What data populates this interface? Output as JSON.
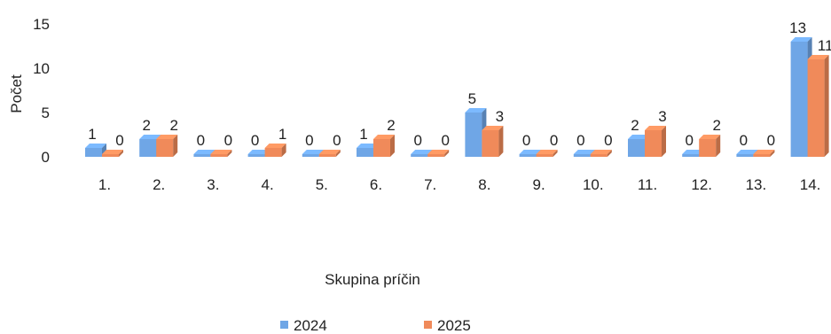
{
  "chart_data": {
    "type": "bar",
    "style": "3d-clustered-column",
    "title": "",
    "xlabel": "Skupina príčin",
    "ylabel": "Počet",
    "ylim": [
      0,
      15
    ],
    "yticks": [
      0,
      5,
      10,
      15
    ],
    "grid": false,
    "legend": "bottom",
    "categories": [
      "1.",
      "2.",
      "3.",
      "4.",
      "5.",
      "6.",
      "7.",
      "8.",
      "9.",
      "10.",
      "11.",
      "12.",
      "13.",
      "14."
    ],
    "series": [
      {
        "name": "2024",
        "color": "#6fa6e6",
        "values": [
          1,
          2,
          0,
          0,
          0,
          1,
          0,
          5,
          0,
          0,
          2,
          0,
          0,
          13
        ]
      },
      {
        "name": "2025",
        "color": "#f08a5a",
        "values": [
          0,
          2,
          0,
          1,
          0,
          2,
          0,
          3,
          0,
          0,
          3,
          2,
          0,
          11
        ]
      }
    ]
  }
}
